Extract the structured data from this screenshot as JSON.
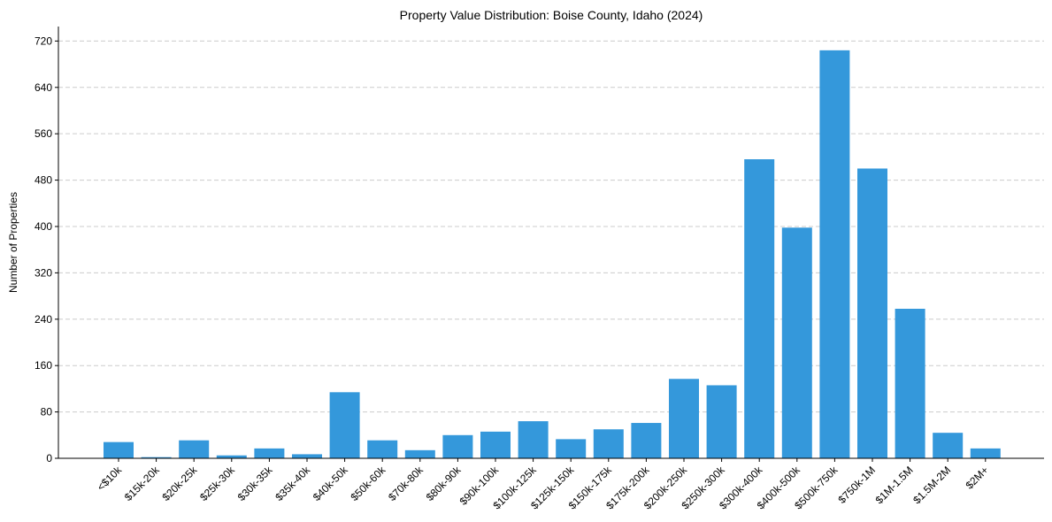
{
  "chart_data": {
    "type": "bar",
    "title": "Property Value Distribution: Boise County, Idaho (2024)",
    "xlabel": "",
    "ylabel": "Number of Properties",
    "ylim": [
      0,
      745
    ],
    "yticks": [
      0,
      80,
      160,
      240,
      320,
      400,
      480,
      560,
      640,
      720
    ],
    "grid": "horizontal dashed",
    "bar_color": "#3498db",
    "categories": [
      "<$10k",
      "$15k-20k",
      "$20k-25k",
      "$25k-30k",
      "$30k-35k",
      "$35k-40k",
      "$40k-50k",
      "$50k-60k",
      "$70k-80k",
      "$80k-90k",
      "$90k-100k",
      "$100k-125k",
      "$125k-150k",
      "$150k-175k",
      "$175k-200k",
      "$200k-250k",
      "$250k-300k",
      "$300k-400k",
      "$400k-500k",
      "$500k-750k",
      "$750k-1M",
      "$1M-1.5M",
      "$1.5M-2M",
      "$2M+"
    ],
    "values": [
      28,
      2,
      31,
      5,
      17,
      7,
      114,
      31,
      14,
      40,
      46,
      64,
      33,
      50,
      61,
      137,
      126,
      516,
      398,
      704,
      500,
      258,
      44,
      17
    ]
  }
}
